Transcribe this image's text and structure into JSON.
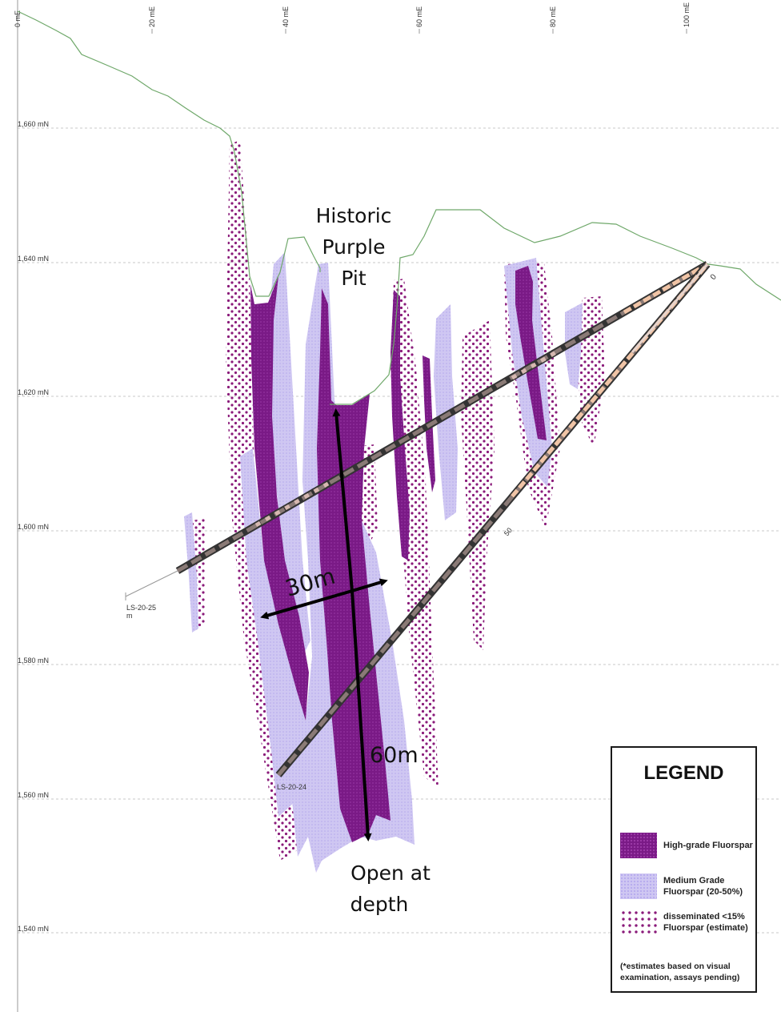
{
  "easting_labels": [
    "0 mE",
    "20 mE",
    "40 mE",
    "60 mE",
    "80 mE",
    "100 mE"
  ],
  "northing_labels": [
    "1,660 mN",
    "1,640 mN",
    "1,620 mN",
    "1,600 mN",
    "1,580 mN",
    "1,560 mN",
    "1,540 mN"
  ],
  "annotations": {
    "pit_line1": "Historic",
    "pit_line2": "Purple",
    "pit_line3": "Pit",
    "width": "30m",
    "depth": "60m",
    "open_line1": "Open at",
    "open_line2": "depth"
  },
  "drillholes": [
    {
      "id": "LS-20-25",
      "suffix": "m"
    },
    {
      "id": "LS-20-24"
    }
  ],
  "hole_depth_label": "50",
  "collar_mark": "0",
  "legend": {
    "title": "LEGEND",
    "items": [
      {
        "label": "High-grade Fluorspar",
        "swatch": "high"
      },
      {
        "label": "Medium Grade Fluorspar (20-50%)",
        "swatch": "medium"
      },
      {
        "label": "disseminated <15% Fluorspar (estimate)",
        "swatch": "disseminated"
      }
    ],
    "note": "(*estimates based on visual examination, assays pending)"
  },
  "colors": {
    "high_grade": "#7a1a86",
    "medium_grade": "#cfc7f2",
    "disseminated": "#8a1a7a",
    "topography": "#6fa86a",
    "grid": "#c8c8c8"
  }
}
